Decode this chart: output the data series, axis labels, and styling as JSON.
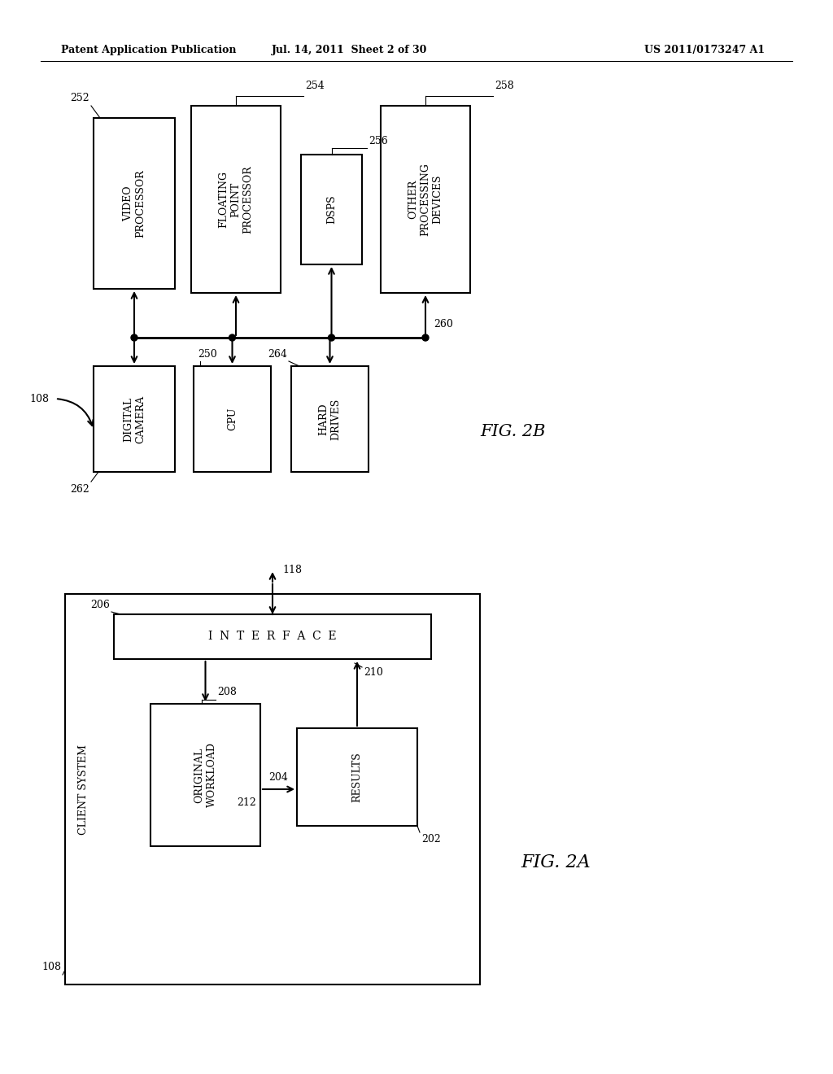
{
  "header_left": "Patent Application Publication",
  "header_mid": "Jul. 14, 2011  Sheet 2 of 30",
  "header_right": "US 2011/0173247 A1",
  "bg_color": "#ffffff",
  "line_color": "#000000"
}
